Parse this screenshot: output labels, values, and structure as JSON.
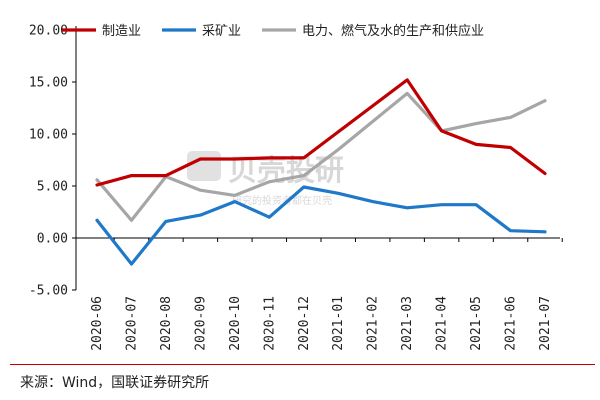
{
  "chart_data": {
    "type": "line",
    "categories": [
      "2020-06",
      "2020-07",
      "2020-08",
      "2020-09",
      "2020-10",
      "2020-11",
      "2020-12",
      "2021-01",
      "2021-02",
      "2021-03",
      "2021-04",
      "2021-05",
      "2021-06",
      "2021-07"
    ],
    "series": [
      {
        "name": "制造业",
        "color": "#c00000",
        "values": [
          5.1,
          6.0,
          6.0,
          7.6,
          7.6,
          7.7,
          7.7,
          10.2,
          12.7,
          15.2,
          10.3,
          9.0,
          8.7,
          6.2
        ]
      },
      {
        "name": "采矿业",
        "color": "#1f78c8",
        "values": [
          1.7,
          -2.5,
          1.6,
          2.2,
          3.5,
          2.0,
          4.9,
          4.3,
          3.5,
          2.9,
          3.2,
          3.2,
          0.7,
          0.6
        ]
      },
      {
        "name": "电力、燃气及水的生产和供应业",
        "color": "#a6a6a6",
        "values": [
          5.6,
          1.7,
          5.9,
          4.6,
          4.1,
          5.4,
          6.0,
          8.5,
          11.2,
          13.9,
          10.3,
          11.0,
          11.6,
          13.2
        ]
      }
    ],
    "y_ticks": [
      "20.00",
      "15.00",
      "10.00",
      "5.00",
      "0.00",
      "-5.00"
    ],
    "ylim": [
      -5,
      20
    ],
    "grid": false,
    "legend_position": "top"
  },
  "watermark": {
    "brand": "贝壳投研",
    "tagline": "研究的投资者都在贝壳"
  },
  "footer": {
    "source": "来源：Wind，国联证券研究所"
  }
}
